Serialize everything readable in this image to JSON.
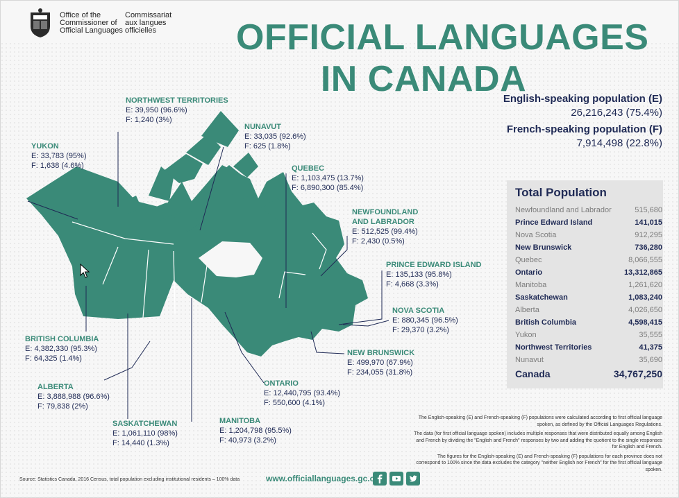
{
  "header": {
    "org_en": [
      "Office of the",
      "Commissioner of",
      "Official Languages"
    ],
    "org_fr": [
      "Commissariat",
      "aux langues",
      "officielles"
    ],
    "title_line1": "OFFICIAL LANGUAGES",
    "title_line2": "IN CANADA"
  },
  "summary": {
    "english_label": "English-speaking population (E)",
    "english_value": "26,216,243 (75.4%)",
    "french_label": "French-speaking population (F)",
    "french_value": "7,914,498 (22.8%)"
  },
  "total_population": {
    "heading": "Total Population",
    "rows": [
      {
        "name": "Newfoundland and Labrador",
        "value": "515,680"
      },
      {
        "name": "Prince Edward Island",
        "value": "141,015"
      },
      {
        "name": "Nova Scotia",
        "value": "912,295"
      },
      {
        "name": "New Brunswick",
        "value": "736,280"
      },
      {
        "name": "Quebec",
        "value": "8,066,555"
      },
      {
        "name": "Ontario",
        "value": "13,312,865"
      },
      {
        "name": "Manitoba",
        "value": "1,261,620"
      },
      {
        "name": "Saskatchewan",
        "value": "1,083,240"
      },
      {
        "name": "Alberta",
        "value": "4,026,650"
      },
      {
        "name": "British Columbia",
        "value": "4,598,415"
      },
      {
        "name": "Yukon",
        "value": "35,555"
      },
      {
        "name": "Northwest Territories",
        "value": "41,375"
      },
      {
        "name": "Nunavut",
        "value": "35,690"
      },
      {
        "name": "Canada",
        "value": "34,767,250"
      }
    ]
  },
  "regions": {
    "nwt": {
      "name": "NORTHWEST TERRITORIES",
      "e": "E: 39,950  (96.6%)",
      "f": "F: 1,240  (3%)"
    },
    "yukon": {
      "name": "YUKON",
      "e": "E: 33,783  (95%)",
      "f": "F: 1,638  (4.6%)"
    },
    "nunavut": {
      "name": "NUNAVUT",
      "e": "E: 33,035  (92.6%)",
      "f": "F: 625  (1.8%)"
    },
    "quebec": {
      "name": "QUEBEC",
      "e": "E: 1,103,475  (13.7%)",
      "f": "F: 6,890,300  (85.4%)"
    },
    "nl": {
      "name_1": "NEWFOUNDLAND",
      "name_2": "AND LABRADOR",
      "e": "E: 512,525  (99.4%)",
      "f": "F: 2,430  (0.5%)"
    },
    "pei": {
      "name": "PRINCE EDWARD ISLAND",
      "e": "E: 135,133  (95.8%)",
      "f": "F: 4,668  (3.3%)"
    },
    "ns": {
      "name": "NOVA SCOTIA",
      "e": "E: 880,345  (96.5%)",
      "f": "F: 29,370  (3.2%)"
    },
    "bc": {
      "name": "BRITISH COLUMBIA",
      "e": "E: 4,382,330  (95.3%)",
      "f": "F: 64,325  (1.4%)"
    },
    "nb": {
      "name": "NEW BRUNSWICK",
      "e": "E: 499,970  (67.9%)",
      "f": "F: 234,055  (31.8%)"
    },
    "alberta": {
      "name": "ALBERTA",
      "e": "E: 3,888,988  (96.6%)",
      "f": "F: 79,838  (2%)"
    },
    "ontario": {
      "name": "ONTARIO",
      "e": "E: 12,440,795  (93.4%)",
      "f": "F: 550,600  (4.1%)"
    },
    "sask": {
      "name": "SASKATCHEWAN",
      "e": "E: 1,061,110  (98%)",
      "f": "F: 14,440  (1.3%)"
    },
    "manitoba": {
      "name": "MANITOBA",
      "e": "E: 1,204,798  (95.5%)",
      "f": "F: 40,973  (3.2%)"
    }
  },
  "notes": [
    "The English-speaking (E) and French-speaking (F) populations were calculated according to first official language spoken, as defined by the Official Languages Regulations.",
    "The data (for first official language spoken) includes multiple responses that were distributed equally among English and French by dividing the \"English and French\" responses by two and adding the quotient to the single responses for English and French.",
    "The figures for the English-speaking (E) and French-speaking (F) populations for each province does not correspond to 100% since the data excludes the category \"neither English nor French\" for the first official language spoken."
  ],
  "footer": {
    "source": "Source: Statistics Canada, 2016 Census, total population excluding institutional residents – 100% data",
    "url": "www.officiallanguages.gc.ca"
  },
  "colors": {
    "accent": "#3a8a78",
    "navy": "#1f2a55"
  },
  "icons": [
    "crest-icon",
    "facebook-icon",
    "youtube-icon",
    "twitter-icon",
    "cursor-icon"
  ]
}
